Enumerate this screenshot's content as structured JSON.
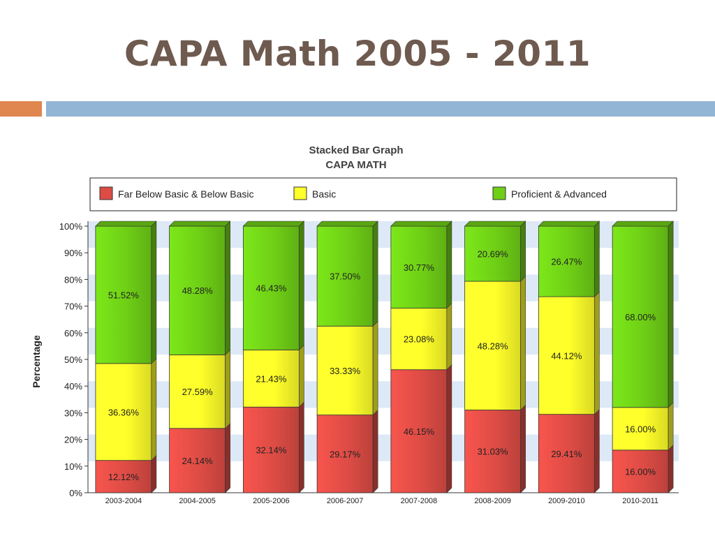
{
  "slide": {
    "title": "CAPA Math 2005 - 2011"
  },
  "colors": {
    "title": "#6e5a4f",
    "accent_orange": "#e0864f",
    "accent_blue": "#92b4d5",
    "far_below": "#dd4c45",
    "basic": "#ffff2a",
    "proficient": "#6fcf16",
    "band": "#dde9f6"
  },
  "chart_data": {
    "type": "bar",
    "stacked": true,
    "title": "Stacked Bar Graph",
    "subtitle": "CAPA MATH",
    "ylabel": "Percentage",
    "xlabel": "",
    "ylim": [
      0,
      100
    ],
    "yticks": [
      "0%",
      "10%",
      "20%",
      "30%",
      "40%",
      "50%",
      "60%",
      "70%",
      "80%",
      "90%",
      "100%"
    ],
    "legend_position": "top",
    "categories": [
      "2003-2004",
      "2004-2005",
      "2005-2006",
      "2006-2007",
      "2007-2008",
      "2008-2009",
      "2009-2010",
      "2010-2011"
    ],
    "series": [
      {
        "name": "Far Below Basic & Below Basic",
        "color": "#dd4c45",
        "values": [
          12.12,
          24.14,
          32.14,
          29.17,
          46.15,
          31.03,
          29.41,
          16.0
        ],
        "labels": [
          "12.12%",
          "24.14%",
          "32.14%",
          "29.17%",
          "46.15%",
          "31.03%",
          "29.41%",
          "16.00%"
        ]
      },
      {
        "name": "Basic",
        "color": "#ffff2a",
        "values": [
          36.36,
          27.59,
          21.43,
          33.33,
          23.08,
          48.28,
          44.12,
          16.0
        ],
        "labels": [
          "36.36%",
          "27.59%",
          "21.43%",
          "33.33%",
          "23.08%",
          "48.28%",
          "44.12%",
          "16.00%"
        ]
      },
      {
        "name": "Proficient & Advanced",
        "color": "#6fcf16",
        "values": [
          51.52,
          48.28,
          46.43,
          37.5,
          30.77,
          20.69,
          26.47,
          68.0
        ],
        "labels": [
          "51.52%",
          "48.28%",
          "46.43%",
          "37.50%",
          "30.77%",
          "20.69%",
          "26.47%",
          "68.00%"
        ]
      }
    ]
  }
}
